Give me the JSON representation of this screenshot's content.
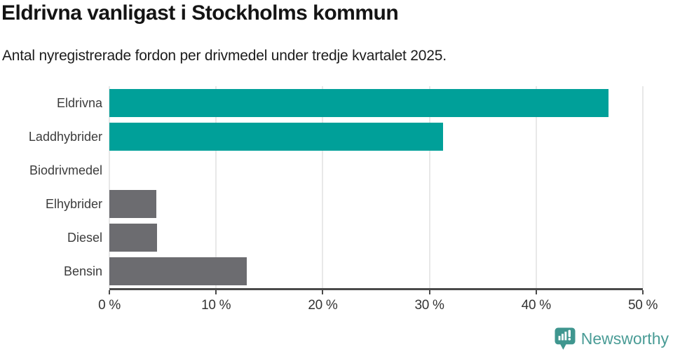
{
  "header": {
    "title": "Eldrivna vanligast i Stockholms kommun",
    "subtitle": "Antal nyregistrerade fordon per drivmedel under tredje kvartalet 2025."
  },
  "chart_data": {
    "type": "bar",
    "orientation": "horizontal",
    "title": "Eldrivna vanligast i Stockholms kommun",
    "subtitle": "Antal nyregistrerade fordon per drivmedel under tredje kvartalet 2025.",
    "categories": [
      "Eldrivna",
      "Laddhybrider",
      "Biodrivmedel",
      "Elhybrider",
      "Diesel",
      "Bensin"
    ],
    "values": [
      46.8,
      31.3,
      0,
      4.4,
      4.5,
      12.9
    ],
    "unit": "%",
    "xlabel": "",
    "ylabel": "",
    "xlim": [
      0,
      50
    ],
    "x_ticks": [
      0,
      10,
      20,
      30,
      40,
      50
    ],
    "x_tick_labels": [
      "0 %",
      "10 %",
      "20 %",
      "30 %",
      "40 %",
      "50 %"
    ],
    "grid": "vertical-only",
    "legend": "none",
    "bar_colors": [
      "#00a099",
      "#00a099",
      "#6c6c70",
      "#6c6c70",
      "#6c6c70",
      "#6c6c70"
    ]
  },
  "footer": {
    "brand": "Newsworthy",
    "logo_icon": "newsworthy-speech-bubble-bar-chart-icon"
  },
  "colors": {
    "accent_teal": "#00a099",
    "bar_gray": "#6c6c70",
    "gridline": "#e8e8e8",
    "axis": "#4a4a4a",
    "title_text": "#141414",
    "label_text": "#3c3c3c",
    "brand_teal": "#4a9c96",
    "logo_fill": "#3f968f"
  }
}
